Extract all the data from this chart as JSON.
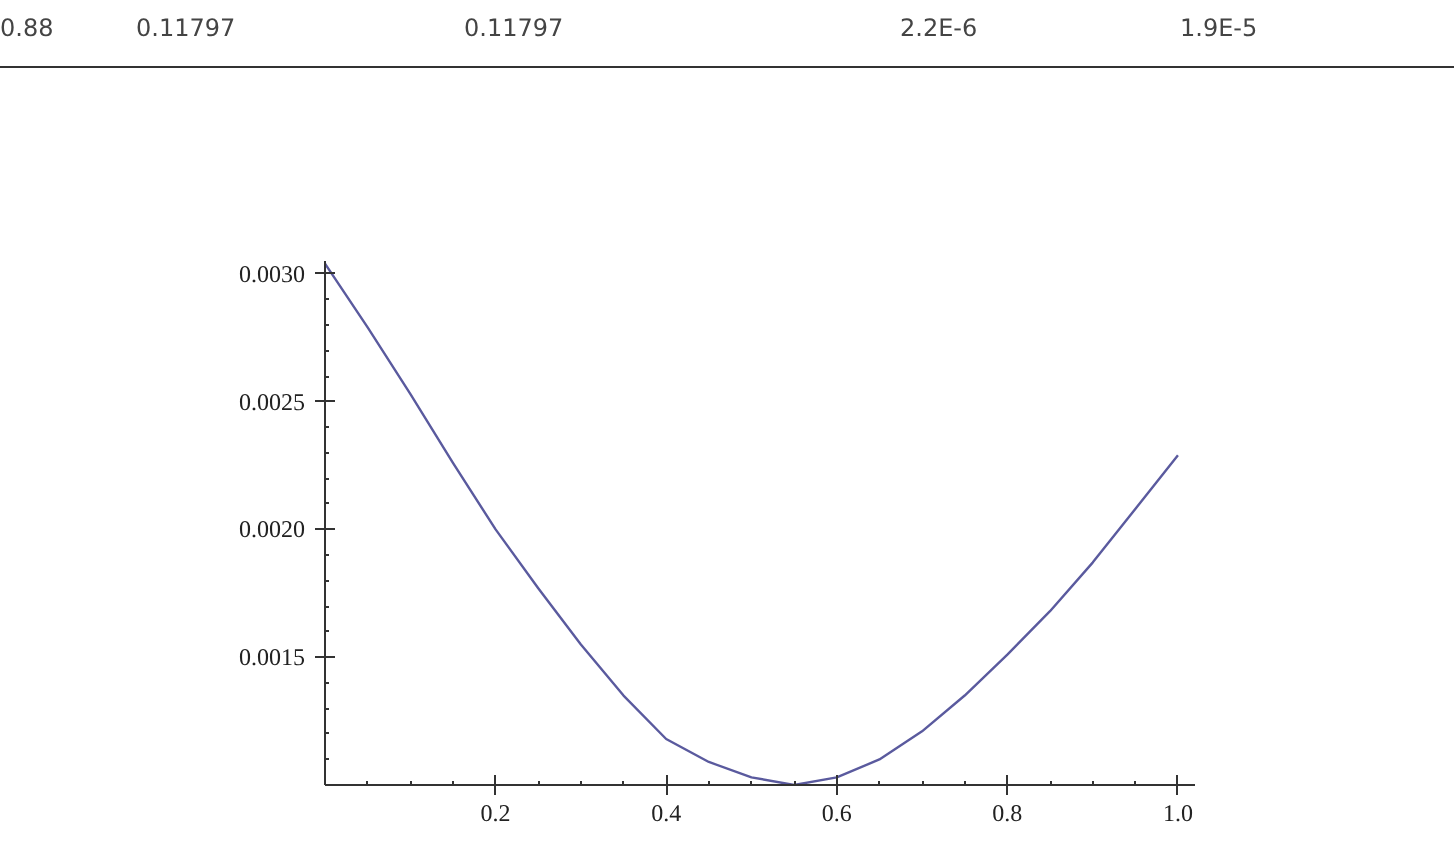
{
  "chart_data": {
    "type": "line",
    "x": [
      0,
      0.05,
      0.1,
      0.15,
      0.2,
      0.25,
      0.3,
      0.35,
      0.4,
      0.45,
      0.5,
      0.55,
      0.6,
      0.65,
      0.7,
      0.75,
      0.8,
      0.85,
      0.9,
      0.95,
      1.0
    ],
    "series": [
      {
        "color": "#5a5a9e",
        "values": [
          0.00304,
          0.00279,
          0.00253,
          0.00226,
          0.002,
          0.00177,
          0.00155,
          0.00135,
          0.00118,
          0.00109,
          0.00103,
          0.001,
          0.00103,
          0.0011,
          0.00121,
          0.00135,
          0.00151,
          0.00168,
          0.00187,
          0.00208,
          0.00229
        ]
      }
    ],
    "xlim": [
      0,
      1.02
    ],
    "ylim": [
      0.001,
      0.00305
    ],
    "xticks": [
      0.2,
      0.4,
      0.6,
      0.8,
      {
        "value": 1.0,
        "label": "1.0"
      }
    ],
    "yticks": [
      0.0015,
      {
        "value": 0.002,
        "label": "0.0020"
      },
      0.0025,
      {
        "value": 0.003,
        "label": "0.0030"
      }
    ],
    "grid": false,
    "marker": "none",
    "line_style": "solid",
    "annotations": [
      "0.88",
      "0.11797",
      "0.11797",
      "2.2E-6",
      "1.9E-5"
    ]
  }
}
